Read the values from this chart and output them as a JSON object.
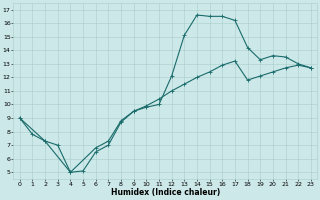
{
  "xlabel": "Humidex (Indice chaleur)",
  "ylabel": "",
  "bg_color": "#cce8e8",
  "line_color": "#1a6b6b",
  "grid_color": "#aacccc",
  "xlim": [
    -0.5,
    23.5
  ],
  "ylim": [
    4.5,
    17.5
  ],
  "xticks": [
    0,
    1,
    2,
    3,
    4,
    5,
    6,
    7,
    8,
    9,
    10,
    11,
    12,
    13,
    14,
    15,
    16,
    17,
    18,
    19,
    20,
    21,
    22,
    23
  ],
  "yticks": [
    5,
    6,
    7,
    8,
    9,
    10,
    11,
    12,
    13,
    14,
    15,
    16,
    17
  ],
  "line1_x": [
    0,
    1,
    2,
    3,
    4,
    5,
    6,
    7,
    8,
    9,
    10,
    11,
    12,
    13,
    14,
    15,
    16,
    17,
    18,
    19,
    20,
    21,
    22,
    23
  ],
  "line1_y": [
    9.0,
    7.8,
    7.3,
    7.0,
    5.0,
    5.1,
    6.5,
    7.0,
    8.7,
    9.5,
    9.8,
    10.0,
    12.1,
    15.1,
    16.6,
    16.5,
    16.5,
    16.2,
    14.2,
    13.3,
    13.6,
    13.5,
    13.0,
    12.7
  ],
  "line2_x": [
    0,
    2,
    4,
    6,
    7,
    8,
    9,
    10,
    11,
    12,
    13,
    14,
    15,
    16,
    17,
    18,
    19,
    20,
    21,
    22,
    23
  ],
  "line2_y": [
    9.0,
    7.3,
    5.0,
    6.8,
    7.3,
    8.8,
    9.5,
    9.9,
    10.4,
    11.0,
    11.5,
    12.0,
    12.4,
    12.9,
    13.2,
    11.8,
    12.1,
    12.4,
    12.7,
    12.9,
    12.7
  ],
  "marker": "+",
  "marker_size": 3,
  "line_width": 0.8,
  "tick_fontsize": 4.5,
  "xlabel_fontsize": 5.5
}
